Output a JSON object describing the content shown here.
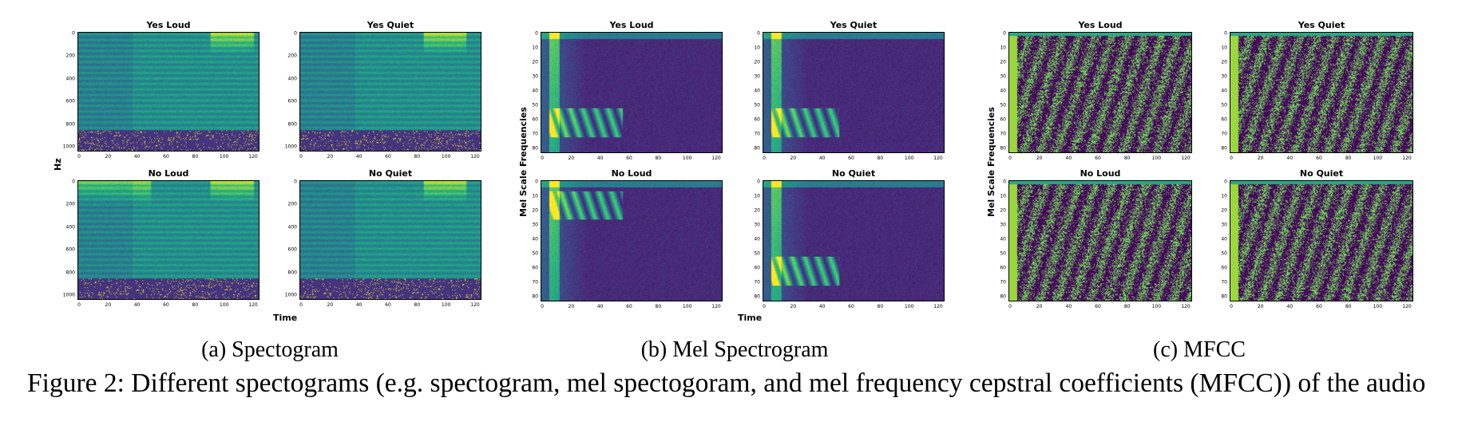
{
  "groups": [
    {
      "id": "spectogram",
      "subcaption": "(a)  Spectogram",
      "ylabel": "Hz",
      "xlabel": "Time",
      "yticks": [
        "0",
        "200",
        "400",
        "600",
        "800",
        "1000"
      ],
      "xticks": [
        "0",
        "20",
        "40",
        "60",
        "80",
        "100",
        "120"
      ],
      "panels": [
        "Yes Loud",
        "Yes Quiet",
        "No Loud",
        "No Quiet"
      ]
    },
    {
      "id": "mel",
      "subcaption": "(b)  Mel Spectrogram",
      "ylabel": "Mel Scale Frequencies",
      "xlabel": "Time",
      "yticks": [
        "0",
        "10",
        "20",
        "30",
        "40",
        "50",
        "60",
        "70",
        "80"
      ],
      "xticks": [
        "0",
        "20",
        "40",
        "60",
        "80",
        "100",
        "120"
      ],
      "panels": [
        "Yes Loud",
        "Yes Quiet",
        "No Loud",
        "No Quiet"
      ]
    },
    {
      "id": "mfcc",
      "subcaption": "(c)  MFCC",
      "ylabel": "Mel Scale Frequencies",
      "xlabel": "",
      "yticks": [
        "0",
        "10",
        "20",
        "30",
        "40",
        "50",
        "60",
        "70",
        "80"
      ],
      "xticks": [
        "0",
        "20",
        "40",
        "60",
        "80",
        "100",
        "120"
      ],
      "panels": [
        "Yes Loud",
        "Yes Quiet",
        "No Loud",
        "No Quiet"
      ]
    }
  ],
  "caption": "Figure 2: Different spectograms (e.g. spectogram, mel spectogoram, and mel frequency cepstral coefficients (MFCC)) of the audio",
  "colormap": "viridis"
}
